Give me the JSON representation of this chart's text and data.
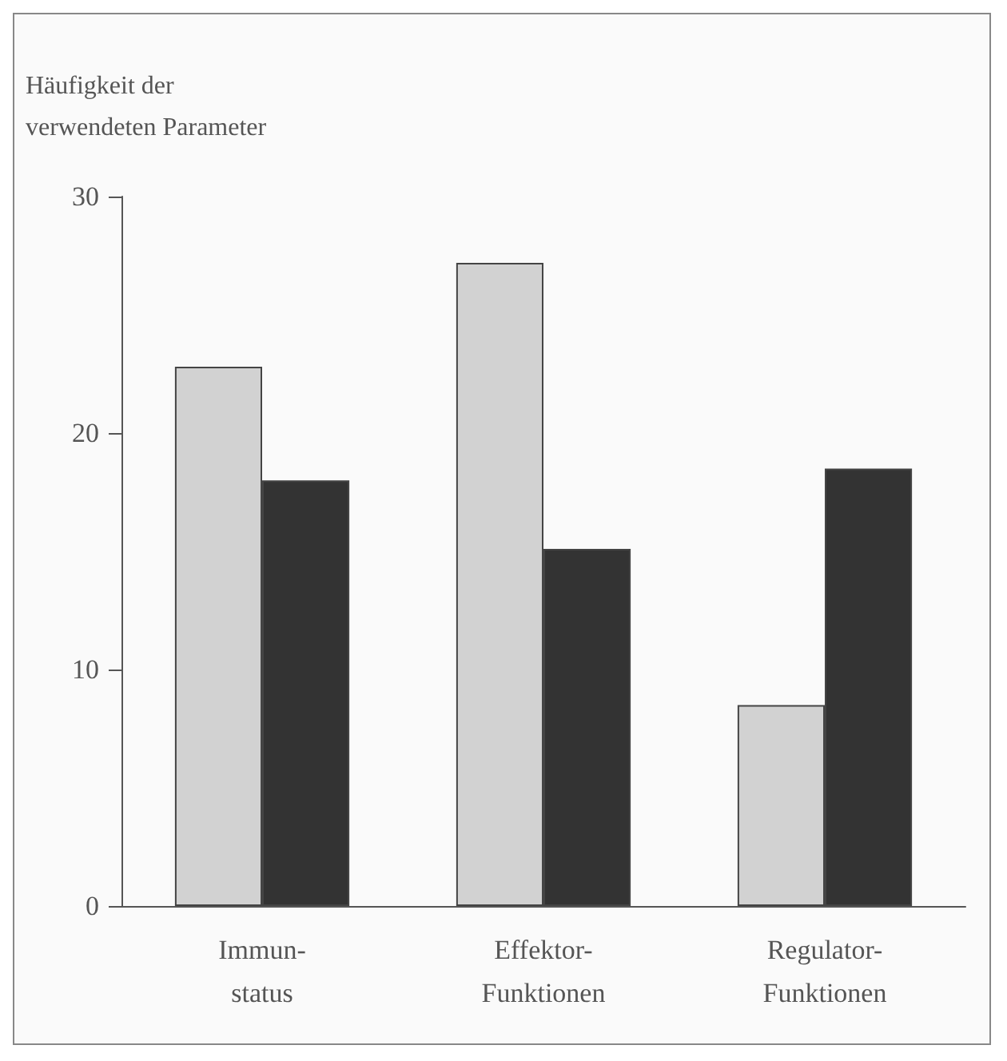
{
  "chart_data": {
    "type": "bar",
    "ylabel": "Häufigkeit der\nverwendeten Parameter",
    "categories": [
      "Immun-\nstatus",
      "Effektor-\nFunktionen",
      "Regulator-\nFunktionen"
    ],
    "series": [
      {
        "color": "#d2d2d2",
        "values": [
          22.8,
          27.2,
          8.5
        ]
      },
      {
        "color": "#333333",
        "values": [
          18.0,
          15.1,
          18.5
        ]
      }
    ],
    "ylim": [
      0,
      30
    ],
    "yticks": [
      0,
      10,
      20,
      30
    ],
    "grid": false
  }
}
